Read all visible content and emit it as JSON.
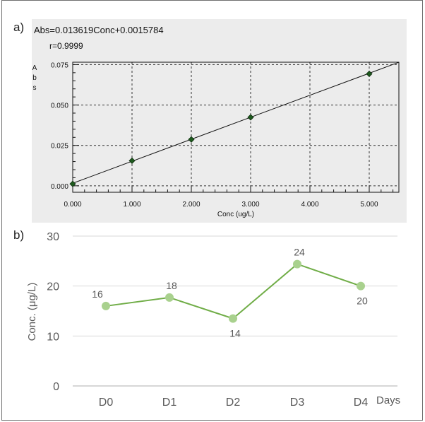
{
  "panels": {
    "a": {
      "label": "a)"
    },
    "b": {
      "label": "b)"
    }
  },
  "colors": {
    "panel_a_background": "#ececec",
    "panel_a_marker": "#1e5a1e",
    "panel_b_line": "#70ad47",
    "panel_b_marker": "#a9d18e",
    "gridline": "#d9d9d9",
    "axis_text": "#595959"
  },
  "chart_data": [
    {
      "type": "scatter",
      "title": "Abs=0.013619Conc+0.0015784",
      "subtitle": "r=0.9999",
      "xlabel": "Conc (ug/L)",
      "ylabel": "Abs",
      "xlim": [
        0,
        5.5
      ],
      "ylim": [
        -0.004,
        0.0765
      ],
      "x_ticks": [
        "0.000",
        "1.000",
        "2.000",
        "3.000",
        "4.000",
        "5.000"
      ],
      "y_ticks": [
        "0.000",
        "0.025",
        "0.050",
        "0.075"
      ],
      "grid": true,
      "points": {
        "x": [
          0,
          1,
          2,
          3,
          5
        ],
        "y": [
          0.0012,
          0.0155,
          0.0287,
          0.0424,
          0.0693
        ]
      },
      "fit_line": {
        "slope": 0.013619,
        "intercept": 0.0015784
      }
    },
    {
      "type": "line",
      "xlabel": "Days",
      "ylabel": "Conc. (μg/L)",
      "categories": [
        "D0",
        "D1",
        "D2",
        "D3",
        "D4"
      ],
      "ylim": [
        0,
        30
      ],
      "y_ticks": [
        "0",
        "10",
        "20",
        "30"
      ],
      "grid": true,
      "values": [
        16,
        17.7,
        13.5,
        24.4,
        20
      ],
      "data_labels": [
        "16",
        "18",
        "14",
        "24",
        "20"
      ],
      "data_label_positions": [
        "above",
        "above",
        "below",
        "above",
        "below"
      ]
    }
  ]
}
